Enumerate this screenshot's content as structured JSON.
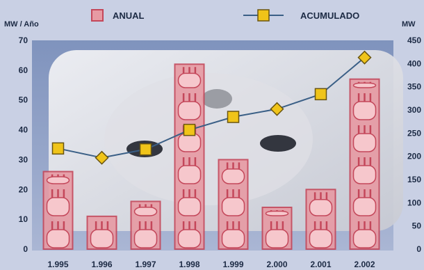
{
  "colors": {
    "background": "#c9d0e4",
    "plot_background": "#8aa0c8",
    "bar_fill": "#e79aa3",
    "bar_stroke": "#c4475a",
    "line": "#3a5f86",
    "marker_fill": "#f0c419",
    "marker_stroke": "#6a5510",
    "text": "#1c2a44"
  },
  "chart_data": {
    "type": "bar",
    "categories": [
      "1.995",
      "1.996",
      "1.997",
      "1.998",
      "1.999",
      "2.000",
      "2.001",
      "2.002"
    ],
    "left_axis_label": "MW / Año",
    "right_axis_label": "MW",
    "left_ticks": [
      0,
      10,
      20,
      30,
      40,
      50,
      60,
      70
    ],
    "right_ticks": [
      0,
      50,
      100,
      150,
      200,
      250,
      300,
      350,
      400,
      450
    ],
    "ylim_left": [
      0,
      70
    ],
    "ylim_right": [
      0,
      450
    ],
    "series": [
      {
        "name": "ANUAL",
        "type": "bar",
        "axis": "left",
        "values": [
          26,
          11,
          16,
          62,
          30,
          14,
          20,
          57
        ]
      },
      {
        "name": "ACUMULADO",
        "type": "line",
        "axis": "right",
        "marker": "square/diamond",
        "values": [
          217,
          197,
          215,
          257,
          285,
          302,
          334,
          413
        ]
      }
    ],
    "legend": {
      "position": "top"
    },
    "grid": false
  }
}
